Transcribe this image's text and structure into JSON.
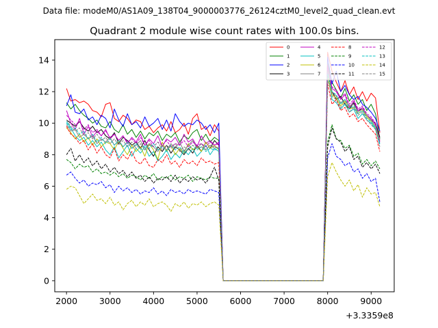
{
  "suptitle": "Data file: modeM0/AS1A09_138T04_9000003776_26124cztM0_level2_quad_clean.evt",
  "chart_data": {
    "type": "line",
    "title": "Quadrant 2 module wise count rates with 100.0s bins.",
    "xlabel": "",
    "ylabel": "",
    "x_offset_label": "+3.3359e8",
    "xlim": [
      1730,
      9530
    ],
    "ylim": [
      -0.7,
      15.3
    ],
    "xticks": [
      2000,
      3000,
      4000,
      5000,
      6000,
      7000,
      8000,
      9000
    ],
    "yticks": [
      0,
      2,
      4,
      6,
      8,
      10,
      12,
      14
    ],
    "grid": false,
    "legend_location": "top-right",
    "legend_columns": 4,
    "x": [
      2000,
      2100,
      2200,
      2300,
      2400,
      2500,
      2600,
      2700,
      2800,
      2900,
      3000,
      3100,
      3200,
      3300,
      3400,
      3500,
      3600,
      3700,
      3800,
      3900,
      4000,
      4100,
      4200,
      4300,
      4400,
      4500,
      4600,
      4700,
      4800,
      4900,
      5000,
      5100,
      5200,
      5300,
      5400,
      5500,
      5600,
      5700,
      5800,
      5900,
      6000,
      6100,
      6200,
      6300,
      6400,
      6500,
      6600,
      6700,
      6800,
      6900,
      7000,
      7100,
      7200,
      7300,
      7400,
      7500,
      7600,
      7700,
      7800,
      7900,
      8000,
      8100,
      8200,
      8300,
      8400,
      8500,
      8600,
      8700,
      8800,
      8900,
      9000,
      9100,
      9200
    ],
    "series": [
      {
        "name": "0",
        "color": "#ff0000",
        "dash": "solid",
        "before": [
          12.2,
          11.4,
          11.5,
          11.3,
          11.4,
          11.2,
          10.8,
          10.7,
          10.4,
          11.2,
          11.3,
          10.3,
          10.1,
          10.5,
          10.3,
          9.9,
          10.2,
          10.1,
          9.6,
          9.8,
          9.4,
          9.7,
          9.9,
          9.5,
          10.1,
          9.4,
          9.6,
          10.0,
          9.3,
          10.3,
          10.6,
          9.6,
          9.8,
          9.2,
          9.9,
          9.5
        ],
        "after": [
          14.5,
          13.3,
          12.6,
          12.0,
          12.7,
          11.8,
          12.3,
          11.5,
          12.0,
          11.4,
          11.9,
          11.6,
          9.4
        ]
      },
      {
        "name": "1",
        "color": "#008000",
        "dash": "solid",
        "before": [
          11.3,
          10.9,
          11.2,
          10.8,
          10.5,
          10.3,
          10.0,
          10.2,
          9.8,
          9.7,
          10.1,
          9.6,
          9.4,
          9.9,
          9.3,
          9.6,
          9.1,
          9.5,
          9.0,
          9.4,
          9.2,
          9.5,
          8.9,
          9.3,
          9.1,
          9.4,
          8.8,
          9.2,
          9.0,
          9.4,
          9.6,
          8.9,
          9.3,
          8.8,
          9.1,
          8.9
        ],
        "after": [
          13.8,
          12.6,
          12.1,
          11.6,
          12.2,
          11.4,
          11.8,
          11.2,
          11.5,
          10.8,
          11.2,
          10.6,
          9.0
        ]
      },
      {
        "name": "2",
        "color": "#0000ff",
        "dash": "solid",
        "before": [
          11.1,
          11.8,
          10.7,
          10.6,
          10.9,
          10.2,
          10.4,
          9.9,
          10.5,
          10.3,
          9.7,
          10.9,
          10.2,
          9.8,
          10.6,
          9.9,
          10.1,
          9.7,
          10.4,
          9.8,
          10.0,
          10.3,
          9.6,
          10.2,
          9.5,
          10.6,
          10.1,
          9.8,
          10.0,
          9.9,
          10.2,
          10.0,
          9.6,
          9.9,
          9.4,
          10.0
        ],
        "after": [
          14.2,
          12.5,
          13.3,
          12.0,
          12.4,
          11.8,
          11.5,
          11.7,
          11.2,
          11.0,
          10.7,
          10.3,
          9.5
        ]
      },
      {
        "name": "3",
        "color": "#000000",
        "dash": "solid",
        "before": [
          10.2,
          10.0,
          9.8,
          10.1,
          9.7,
          9.5,
          9.8,
          9.4,
          9.6,
          9.2,
          9.0,
          9.4,
          8.7,
          9.1,
          8.9,
          8.6,
          8.8,
          8.4,
          8.9,
          8.3,
          7.9,
          8.5,
          8.2,
          8.6,
          8.1,
          8.5,
          8.3,
          8.0,
          8.4,
          8.1,
          8.6,
          8.2,
          8.8,
          8.4,
          8.9,
          8.6
        ],
        "after": [
          13.5,
          12.0,
          11.5,
          11.7,
          11.2,
          10.9,
          11.3,
          10.8,
          10.9,
          10.5,
          10.2,
          10.0,
          9.1
        ]
      },
      {
        "name": "4",
        "color": "#bf00bf",
        "dash": "solid",
        "before": [
          10.8,
          10.0,
          9.6,
          10.3,
          9.3,
          9.8,
          9.1,
          9.5,
          9.2,
          9.6,
          9.0,
          9.3,
          8.9,
          9.2,
          8.7,
          9.1,
          8.8,
          9.3,
          8.6,
          9.0,
          8.7,
          9.2,
          8.5,
          9.0,
          8.8,
          9.1,
          8.6,
          9.3,
          8.8,
          9.0,
          8.5,
          9.2,
          8.7,
          8.9,
          8.6,
          8.8
        ],
        "after": [
          13.7,
          12.2,
          12.0,
          11.5,
          11.8,
          11.0,
          11.4,
          10.8,
          11.0,
          10.5,
          10.3,
          9.9,
          8.8
        ]
      },
      {
        "name": "5",
        "color": "#00bfbf",
        "dash": "solid",
        "before": [
          10.1,
          9.7,
          9.2,
          8.9,
          9.1,
          8.6,
          8.9,
          8.5,
          8.8,
          8.3,
          8.0,
          8.5,
          7.8,
          8.2,
          8.6,
          7.9,
          8.4,
          8.1,
          8.5,
          7.9,
          8.2,
          7.6,
          7.9,
          8.3,
          7.7,
          8.1,
          7.8,
          8.3,
          8.0,
          8.4,
          7.9,
          8.2,
          8.6,
          8.0,
          8.4,
          8.2
        ],
        "after": [
          13.2,
          11.5,
          11.3,
          10.9,
          11.2,
          10.7,
          10.9,
          10.3,
          10.6,
          10.2,
          10.0,
          9.6,
          8.7
        ]
      },
      {
        "name": "6",
        "color": "#bfbf00",
        "dash": "solid",
        "before": [
          9.7,
          9.4,
          9.0,
          9.3,
          8.8,
          9.1,
          8.6,
          9.0,
          8.5,
          8.8,
          8.7,
          8.3,
          8.9,
          8.4,
          8.0,
          8.6,
          8.2,
          8.5,
          7.9,
          8.7,
          8.3,
          7.7,
          8.8,
          8.2,
          8.6,
          8.0,
          8.4,
          8.1,
          8.7,
          8.3,
          8.5,
          8.2,
          8.8,
          8.4,
          8.6,
          8.3
        ],
        "after": [
          13.0,
          11.8,
          11.6,
          11.1,
          11.4,
          10.9,
          11.0,
          10.6,
          10.8,
          10.4,
          10.1,
          9.7,
          8.9
        ]
      },
      {
        "name": "7",
        "color": "#808080",
        "dash": "solid",
        "before": [
          9.9,
          9.5,
          9.6,
          9.1,
          9.3,
          9.0,
          9.2,
          8.7,
          9.0,
          8.8,
          9.1,
          8.6,
          8.9,
          8.5,
          8.8,
          8.4,
          8.6,
          8.9,
          8.3,
          8.7,
          8.5,
          8.2,
          8.6,
          8.3,
          8.7,
          8.4,
          8.8,
          8.2,
          8.6,
          8.9,
          8.4,
          8.7,
          8.3,
          8.6,
          8.5,
          8.4
        ],
        "after": [
          13.4,
          12.0,
          11.7,
          11.3,
          11.5,
          11.1,
          11.2,
          10.7,
          10.9,
          10.5,
          10.2,
          9.8,
          9.0
        ]
      },
      {
        "name": "8",
        "color": "#ff0000",
        "dash": "dashed",
        "before": [
          9.8,
          9.3,
          9.1,
          8.7,
          8.9,
          8.3,
          8.7,
          8.1,
          8.5,
          8.0,
          7.8,
          8.4,
          7.6,
          8.0,
          7.7,
          8.2,
          7.6,
          7.4,
          7.8,
          7.3,
          7.2,
          7.7,
          7.5,
          8.0,
          7.4,
          7.6,
          7.2,
          7.7,
          7.4,
          7.6,
          7.3,
          7.8,
          7.5,
          7.6,
          7.4,
          7.5
        ],
        "after": [
          12.5,
          11.2,
          11.5,
          10.8,
          11.0,
          10.4,
          10.6,
          10.1,
          10.3,
          9.9,
          9.6,
          9.3,
          8.2
        ]
      },
      {
        "name": "9",
        "color": "#008000",
        "dash": "dashed",
        "before": [
          7.7,
          7.5,
          7.1,
          7.4,
          7.2,
          7.3,
          6.9,
          7.1,
          6.8,
          6.9,
          6.7,
          6.9,
          6.6,
          6.8,
          6.5,
          6.7,
          6.6,
          6.4,
          6.7,
          6.5,
          6.8,
          6.4,
          6.6,
          6.5,
          6.7,
          6.4,
          6.6,
          6.5,
          6.7,
          6.3,
          6.6,
          6.5,
          6.4,
          6.6,
          6.5,
          6.5
        ],
        "after": [
          8.8,
          9.9,
          9.0,
          8.9,
          8.4,
          8.6,
          7.9,
          8.1,
          7.4,
          7.7,
          7.3,
          7.6,
          7.1
        ]
      },
      {
        "name": "10",
        "color": "#0000ff",
        "dash": "dashed",
        "before": [
          6.7,
          6.9,
          6.5,
          6.2,
          6.4,
          6.0,
          6.2,
          6.1,
          6.3,
          5.9,
          6.1,
          5.6,
          6.0,
          5.7,
          5.9,
          5.6,
          5.8,
          5.5,
          5.7,
          5.6,
          5.9,
          5.5,
          5.7,
          5.4,
          5.8,
          5.6,
          5.7,
          5.5,
          5.8,
          5.6,
          5.7,
          5.6,
          5.5,
          5.8,
          5.7,
          5.6
        ],
        "after": [
          7.8,
          8.7,
          7.9,
          7.7,
          7.3,
          7.5,
          6.9,
          7.1,
          6.5,
          6.8,
          6.3,
          6.5,
          5.0
        ]
      },
      {
        "name": "11",
        "color": "#000000",
        "dash": "dashed",
        "before": [
          8.0,
          8.4,
          7.6,
          8.0,
          7.5,
          7.8,
          7.3,
          7.6,
          7.1,
          7.4,
          6.9,
          7.2,
          6.8,
          7.0,
          6.6,
          6.9,
          6.5,
          6.7,
          6.3,
          6.6,
          6.2,
          6.5,
          6.4,
          6.6,
          6.3,
          6.7,
          6.2,
          6.5,
          6.3,
          6.6,
          6.4,
          6.5,
          6.2,
          6.6,
          7.2,
          6.4
        ],
        "after": [
          8.5,
          9.7,
          9.0,
          8.8,
          8.2,
          8.5,
          7.7,
          7.9,
          7.2,
          7.5,
          7.1,
          7.4,
          6.8
        ]
      },
      {
        "name": "12",
        "color": "#bf00bf",
        "dash": "dashed",
        "before": [
          10.5,
          10.2,
          9.9,
          10.1,
          9.6,
          9.9,
          9.4,
          9.6,
          9.2,
          9.5,
          9.1,
          9.3,
          8.9,
          9.2,
          8.8,
          9.0,
          8.7,
          9.1,
          8.6,
          8.9,
          8.5,
          8.8,
          8.6,
          8.9,
          8.5,
          8.7,
          8.6,
          8.9,
          8.5,
          8.8,
          8.6,
          8.7,
          8.5,
          8.8,
          8.6,
          8.7
        ],
        "after": [
          13.6,
          12.3,
          12.1,
          11.6,
          11.9,
          11.2,
          11.5,
          10.9,
          11.1,
          10.6,
          10.4,
          10.0,
          8.9
        ]
      },
      {
        "name": "13",
        "color": "#00bfbf",
        "dash": "dashed",
        "before": [
          10.0,
          9.6,
          9.7,
          9.3,
          9.5,
          9.0,
          9.3,
          8.8,
          9.1,
          8.7,
          9.0,
          8.6,
          8.9,
          8.5,
          8.8,
          8.4,
          8.7,
          8.3,
          8.6,
          8.4,
          8.7,
          8.3,
          8.5,
          8.2,
          8.6,
          8.3,
          8.5,
          8.1,
          8.4,
          8.6,
          8.3,
          8.5,
          8.2,
          8.4,
          8.3,
          8.4
        ],
        "after": [
          13.1,
          12.0,
          11.8,
          11.2,
          11.5,
          10.9,
          11.1,
          10.6,
          10.8,
          10.3,
          10.1,
          9.7,
          8.6
        ]
      },
      {
        "name": "14",
        "color": "#bfbf00",
        "dash": "dashed",
        "before": [
          5.8,
          6.0,
          5.9,
          5.4,
          4.9,
          5.2,
          5.5,
          5.1,
          5.2,
          4.9,
          5.3,
          4.8,
          5.0,
          4.5,
          4.9,
          5.1,
          4.7,
          5.0,
          4.8,
          5.2,
          4.7,
          4.9,
          5.0,
          4.8,
          4.4,
          4.9,
          4.7,
          5.0,
          4.6,
          4.9,
          4.8,
          5.0,
          4.7,
          4.9,
          5.0,
          4.8
        ],
        "after": [
          6.6,
          7.5,
          6.9,
          6.4,
          6.0,
          6.4,
          5.7,
          6.1,
          5.3,
          5.9,
          5.5,
          5.6,
          4.7
        ]
      },
      {
        "name": "15",
        "color": "#808080",
        "dash": "dashed",
        "before": [
          10.2,
          9.8,
          9.5,
          9.7,
          9.2,
          9.4,
          9.0,
          9.3,
          8.9,
          9.1,
          8.7,
          9.0,
          8.6,
          8.9,
          8.5,
          8.8,
          8.4,
          8.7,
          8.3,
          8.6,
          8.5,
          8.8,
          8.3,
          8.6,
          8.4,
          8.7,
          8.2,
          8.5,
          8.3,
          8.6,
          8.4,
          8.5,
          8.3,
          8.6,
          8.4,
          8.5
        ],
        "after": [
          12.8,
          11.7,
          11.5,
          11.0,
          11.3,
          10.7,
          11.0,
          10.5,
          10.7,
          10.2,
          9.9,
          9.6,
          8.5
        ]
      }
    ]
  }
}
